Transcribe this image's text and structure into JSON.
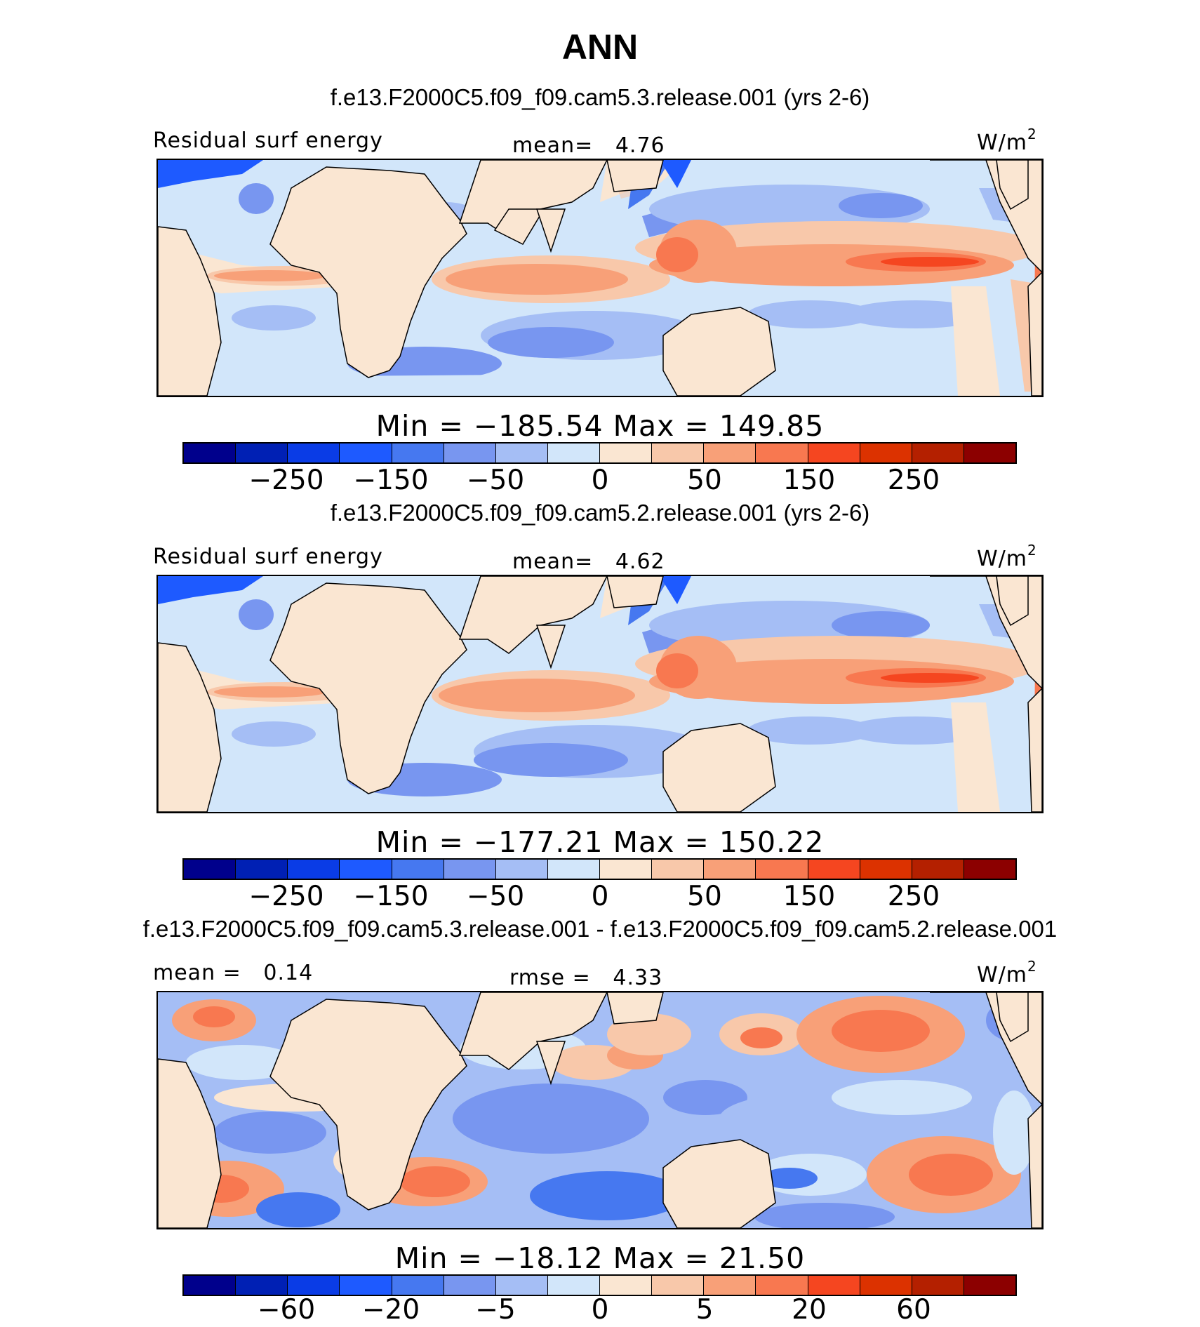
{
  "page": {
    "title": "ANN"
  },
  "colors": [
    "#00008c",
    "#0020b4",
    "#0a3ce6",
    "#1e5aff",
    "#4678f0",
    "#7896f0",
    "#a5bef5",
    "#d2e6fa",
    "#fae6d2",
    "#f8c8aa",
    "#f8a078",
    "#f87850",
    "#f54620",
    "#dc3200",
    "#b42000",
    "#8c0000"
  ],
  "panels": [
    {
      "run_title": "f.e13.F2000C5.f09_f09.cam5.3.release.001 (yrs 2-6)",
      "left_label": "Residual surf energy",
      "center_label": "mean=   4.76",
      "units": "W/m",
      "units_sup": "2",
      "stats": "Min = −185.54 Max = 149.85",
      "ticks": [
        "−250",
        "−150",
        "−50",
        "0",
        "50",
        "150",
        "250"
      ]
    },
    {
      "run_title": "f.e13.F2000C5.f09_f09.cam5.2.release.001 (yrs 2-6)",
      "left_label": "Residual surf energy",
      "center_label": "mean=   4.62",
      "units": "W/m",
      "units_sup": "2",
      "stats": "Min = −177.21 Max = 150.22",
      "ticks": [
        "−250",
        "−150",
        "−50",
        "0",
        "50",
        "150",
        "250"
      ]
    },
    {
      "run_title": "f.e13.F2000C5.f09_f09.cam5.3.release.001 - f.e13.F2000C5.f09_f09.cam5.2.release.001",
      "left_label": "mean =   0.14",
      "center_label": "rmse =   4.33",
      "units": "W/m",
      "units_sup": "2",
      "stats": "Min = −18.12 Max = 21.50",
      "ticks": [
        "−60",
        "−20",
        "−5",
        "0",
        "5",
        "20",
        "60"
      ]
    }
  ]
}
